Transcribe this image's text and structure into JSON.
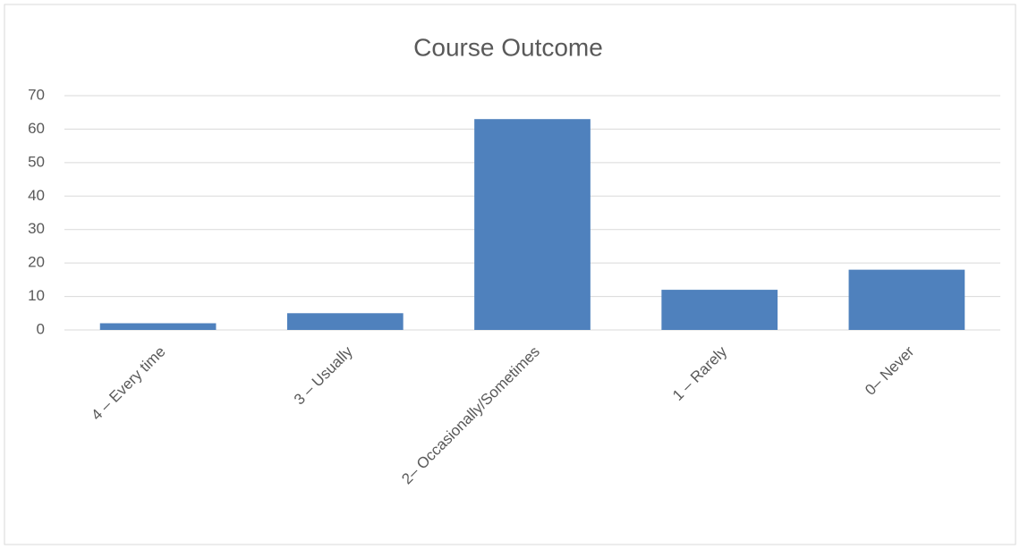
{
  "chart_data": {
    "type": "bar",
    "title": "Course Outcome",
    "categories": [
      "4 – Every time",
      "3 – Usually",
      "2– Occasionally/Sometimes",
      "1 – Rarely",
      "0– Never"
    ],
    "values": [
      2,
      5,
      63,
      12,
      18
    ],
    "color": "#4f81bd",
    "ylim": [
      0,
      70
    ],
    "yticks": [
      0,
      10,
      20,
      30,
      40,
      50,
      60,
      70
    ],
    "grid": true
  }
}
